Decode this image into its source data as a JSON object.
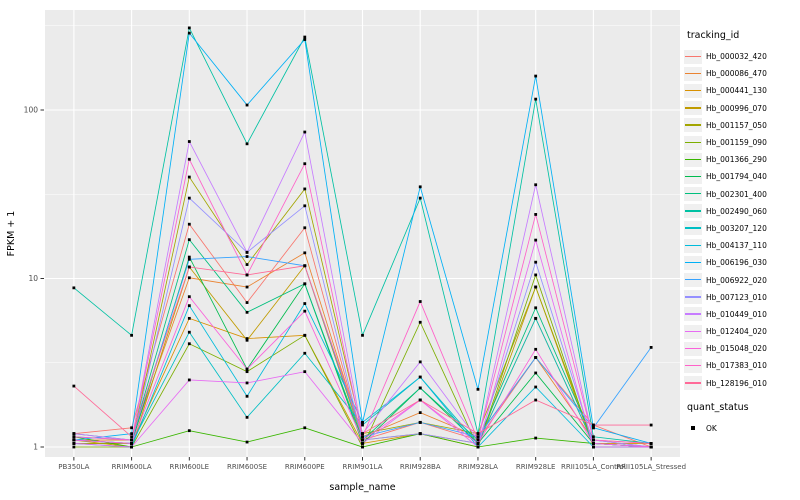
{
  "style": {
    "figure_bg": "#FFFFFF",
    "panel_bg": "#EBEBEB",
    "grid_color": "#FFFFFF",
    "axis_text_color": "#4D4D4D",
    "title_text_color": "#000000",
    "point_color": "#000000",
    "legend_key_bg": "#F0F0F0",
    "tick_color": "#333333"
  },
  "chart_data": {
    "type": "line",
    "title": "",
    "xlabel": "sample_name",
    "ylabel": "FPKM + 1",
    "y_scale": "log10",
    "y_ticks": [
      1,
      10,
      100
    ],
    "y_tick_labels": [
      "1",
      "10",
      "100"
    ],
    "y_minor_ticks": [
      3.162,
      31.62,
      316.2
    ],
    "ylim": [
      0.9,
      400
    ],
    "grid": true,
    "point_shape": "square",
    "legend_position": "right",
    "legend_color_title": "tracking_id",
    "legend_shape_title": "quant_status",
    "legend_shape_items": [
      {
        "label": "OK",
        "shape": "black-square"
      }
    ],
    "x_categories": [
      "PB350LA",
      "RRIM600LA",
      "RRIM600LE",
      "RRIM600SE",
      "RRIM600PE",
      "RRIM901LA",
      "RRIM928BA",
      "RRIM928LA",
      "RRIM928LE",
      "RRII105LA_Control",
      "RRII105LA_Stressed"
    ],
    "series": [
      {
        "name": "Hb_000032_420",
        "color": "#F8766D",
        "values": [
          1.2,
          1.3,
          21,
          7.2,
          20,
          1.1,
          1.4,
          1.1,
          3.4,
          1.35,
          1.0
        ]
      },
      {
        "name": "Hb_000086_470",
        "color": "#EA8331",
        "values": [
          1.1,
          1.1,
          10.1,
          8.9,
          14.2,
          1.15,
          1.6,
          1.15,
          3.4,
          1.1,
          1.05
        ]
      },
      {
        "name": "Hb_000441_130",
        "color": "#D89000",
        "values": [
          1.05,
          1.05,
          5.8,
          4.4,
          4.6,
          1.05,
          1.2,
          1.05,
          5.8,
          1.05,
          1.05
        ]
      },
      {
        "name": "Hb_000996_070",
        "color": "#C09B00",
        "values": [
          1.1,
          1.0,
          11.7,
          4.3,
          11.9,
          1.1,
          1.2,
          1.0,
          8.9,
          1.0,
          1.0
        ]
      },
      {
        "name": "Hb_001157_050",
        "color": "#A3A500",
        "values": [
          1.05,
          1.05,
          40,
          12.1,
          34,
          1.2,
          1.4,
          1.2,
          8.9,
          1.05,
          1.0
        ]
      },
      {
        "name": "Hb_001159_090",
        "color": "#7CAE00",
        "values": [
          1.0,
          1.0,
          4.1,
          2.8,
          4.6,
          1.0,
          5.5,
          1.0,
          10.5,
          1.0,
          1.0
        ]
      },
      {
        "name": "Hb_001366_290",
        "color": "#39B600",
        "values": [
          1.15,
          1.0,
          1.25,
          1.07,
          1.3,
          1.0,
          1.2,
          1.0,
          1.13,
          1.05,
          1.0
        ]
      },
      {
        "name": "Hb_001794_040",
        "color": "#00BB4E",
        "values": [
          1.1,
          1.05,
          13.4,
          2.9,
          9.3,
          1.05,
          2.24,
          1.05,
          2.75,
          1.05,
          1.0
        ]
      },
      {
        "name": "Hb_002301_400",
        "color": "#00BF7D",
        "values": [
          1.2,
          1.1,
          17,
          6.3,
          9.3,
          1.1,
          2.24,
          1.1,
          6.7,
          1.1,
          1.0
        ]
      },
      {
        "name": "Hb_002490_060",
        "color": "#00C1A3",
        "values": [
          8.8,
          4.6,
          307,
          63,
          271,
          4.6,
          30,
          1.2,
          116,
          1.15,
          1.05
        ]
      },
      {
        "name": "Hb_003207_120",
        "color": "#00BFC4",
        "values": [
          1.1,
          1.05,
          4.8,
          1.5,
          3.6,
          1.35,
          2.6,
          1.05,
          5.8,
          1.05,
          1.0
        ]
      },
      {
        "name": "Hb_004137_110",
        "color": "#00BBDB",
        "values": [
          1.05,
          1.0,
          6.9,
          2.0,
          7.1,
          1.4,
          2.6,
          1.0,
          2.27,
          1.0,
          1.0
        ]
      },
      {
        "name": "Hb_006196_030",
        "color": "#00B0F6",
        "values": [
          1.1,
          1.2,
          286,
          107,
          262,
          1.4,
          35,
          2.2,
          159,
          1.3,
          1.05
        ]
      },
      {
        "name": "Hb_006922_020",
        "color": "#35A2FF",
        "values": [
          1.15,
          1.1,
          13.0,
          13.5,
          11.9,
          1.15,
          1.4,
          1.15,
          3.4,
          1.3,
          3.9
        ]
      },
      {
        "name": "Hb_007123_010",
        "color": "#9590FF",
        "values": [
          1.1,
          1.05,
          30,
          14.3,
          27,
          1.1,
          1.2,
          1.05,
          12.5,
          1.05,
          1.0
        ]
      },
      {
        "name": "Hb_010449_010",
        "color": "#C77CFF",
        "values": [
          1.2,
          1.1,
          65,
          14.3,
          74,
          1.2,
          3.2,
          1.1,
          36,
          1.1,
          1.0
        ]
      },
      {
        "name": "Hb_012404_020",
        "color": "#E76BF3",
        "values": [
          1.05,
          1.0,
          2.5,
          2.4,
          2.8,
          1.05,
          1.9,
          1.0,
          16.9,
          1.0,
          1.0
        ]
      },
      {
        "name": "Hb_015048_020",
        "color": "#FA62DB",
        "values": [
          1.1,
          1.05,
          7.8,
          2.9,
          6.4,
          1.1,
          1.9,
          1.05,
          3.8,
          1.05,
          1.0
        ]
      },
      {
        "name": "Hb_017383_010",
        "color": "#FF61C9",
        "values": [
          1.15,
          1.1,
          51,
          10.5,
          48,
          1.15,
          7.3,
          1.1,
          24,
          1.1,
          1.05
        ]
      },
      {
        "name": "Hb_128196_010",
        "color": "#FF6A98",
        "values": [
          2.3,
          1.15,
          11.7,
          10.5,
          11.9,
          1.2,
          1.9,
          1.2,
          1.9,
          1.35,
          1.35
        ]
      }
    ]
  }
}
